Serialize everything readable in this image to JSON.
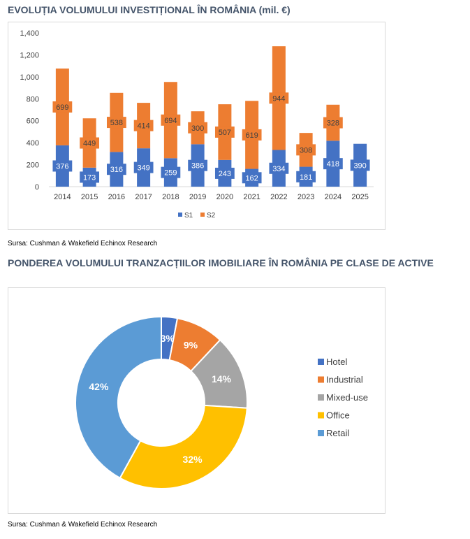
{
  "section1": {
    "title": "EVOLUȚIA VOLUMULUI INVESTIȚIONAL ÎN ROMÂNIA (mil. €)",
    "source": "Sursa: Cushman & Wakefield Echinox Research"
  },
  "section2": {
    "title": "PONDEREA VOLUMULUI TRANZACȚIILOR IMOBILIARE ÎN ROMÂNIA PE CLASE DE ACTIVE",
    "source": "Sursa: Cushman & Wakefield Echinox Research"
  },
  "chart_data": [
    {
      "type": "bar",
      "stacked": true,
      "categories": [
        "2014",
        "2015",
        "2016",
        "2017",
        "2018",
        "2019",
        "2020",
        "2021",
        "2022",
        "2023",
        "2024",
        "2025"
      ],
      "series": [
        {
          "name": "S1",
          "color": "#4472c4",
          "values": [
            376,
            173,
            316,
            349,
            259,
            386,
            243,
            162,
            334,
            181,
            418,
            390
          ]
        },
        {
          "name": "S2",
          "color": "#ed7d31",
          "values": [
            699,
            449,
            538,
            414,
            694,
            300,
            507,
            619,
            944,
            308,
            328,
            null
          ]
        }
      ],
      "ylim": [
        0,
        1400
      ],
      "yticks": [
        0,
        200,
        400,
        600,
        800,
        1000,
        1200,
        1400
      ],
      "ytick_labels": [
        "0",
        "200",
        "400",
        "600",
        "800",
        "1,000",
        "1,200",
        "1,400"
      ],
      "legend_position": "bottom",
      "grid": false
    },
    {
      "type": "pie",
      "donut": true,
      "labels": [
        "Hotel",
        "Industrial",
        "Mixed-use",
        "Office",
        "Retail"
      ],
      "values": [
        3,
        9,
        14,
        32,
        42
      ],
      "value_labels": [
        "3%",
        "9%",
        "14%",
        "32%",
        "42%"
      ],
      "colors": [
        "#4472c4",
        "#ed7d31",
        "#a5a5a5",
        "#ffc000",
        "#5b9bd5"
      ],
      "legend_position": "right"
    }
  ]
}
